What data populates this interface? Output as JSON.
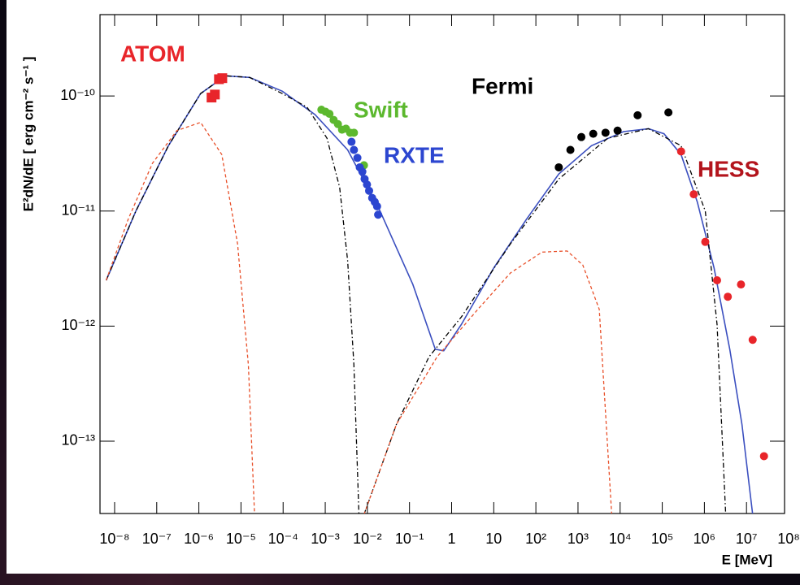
{
  "chart_data": {
    "type": "scatter",
    "xlabel": "E [MeV]",
    "ylabel": "E²dN/dE [ erg cm⁻² s⁻¹ ]",
    "log_x": true,
    "log_y": true,
    "xlim": [
      4.5e-09,
      80000000.0
    ],
    "ylim": [
      2.35e-14,
      5.1e-10
    ],
    "xticks": [
      {
        "value": 1e-08,
        "label": "10⁻⁸"
      },
      {
        "value": 1e-07,
        "label": "10⁻⁷"
      },
      {
        "value": 1e-06,
        "label": "10⁻⁶"
      },
      {
        "value": 1e-05,
        "label": "10⁻⁵"
      },
      {
        "value": 0.0001,
        "label": "10⁻⁴"
      },
      {
        "value": 0.001,
        "label": "10⁻³"
      },
      {
        "value": 0.01,
        "label": "10⁻²"
      },
      {
        "value": 0.1,
        "label": "10⁻¹"
      },
      1,
      10,
      {
        "value": 100,
        "label": "10²"
      },
      {
        "value": 1000,
        "label": "10³"
      },
      {
        "value": 10000,
        "label": "10⁴"
      },
      {
        "value": 100000,
        "label": "10⁵"
      },
      {
        "value": 1000000,
        "label": "10⁶"
      },
      {
        "value": 10000000,
        "label": "10⁷"
      },
      {
        "value": 100000000,
        "label": "10⁸"
      }
    ],
    "yticks": [
      {
        "value": 1e-13,
        "label": "10⁻¹³"
      },
      {
        "value": 1e-12,
        "label": "10⁻¹²"
      },
      {
        "value": 1e-11,
        "label": "10⁻¹¹"
      },
      {
        "value": 1e-10,
        "label": "10⁻¹⁰"
      }
    ],
    "series": [
      {
        "name": "ATOM",
        "color": "#e8252a",
        "marker": "square",
        "x": [
          2e-06,
          2.4e-06,
          3e-06,
          3.6e-06
        ],
        "values": [
          9.7e-11,
          1.03e-10,
          1.4e-10,
          1.43e-10
        ]
      },
      {
        "name": "Swift",
        "color": "#5cb82e",
        "marker": "circle",
        "x": [
          0.00081,
          0.00102,
          0.00126,
          0.00158,
          0.002,
          0.0025,
          0.0031,
          0.0039,
          0.0048,
          0.0083
        ],
        "values": [
          7.6e-11,
          7.3e-11,
          7e-11,
          6.2e-11,
          5.7e-11,
          5.1e-11,
          5.2e-11,
          4.8e-11,
          4.8e-11,
          2.5e-11
        ]
      },
      {
        "name": "RXTE",
        "color": "#2c46d0",
        "marker": "circle",
        "x": [
          0.0042,
          0.0048,
          0.0058,
          0.0066,
          0.0076,
          0.0086,
          0.0098,
          0.011,
          0.013,
          0.015,
          0.017,
          0.018
        ],
        "values": [
          4e-11,
          3.4e-11,
          2.9e-11,
          2.4e-11,
          2.2e-11,
          1.9e-11,
          1.7e-11,
          1.5e-11,
          1.3e-11,
          1.2e-11,
          1.1e-11,
          9.3e-12
        ]
      },
      {
        "name": "Fermi",
        "color": "#000000",
        "marker": "circle",
        "x": [
          350,
          660,
          1200,
          2300,
          4500,
          8700,
          26000,
          140000
        ],
        "values": [
          2.4e-11,
          3.4e-11,
          4.4e-11,
          4.7e-11,
          4.8e-11,
          5e-11,
          6.8e-11,
          7.2e-11
        ]
      },
      {
        "name": "HESS",
        "color": "#b3141c",
        "marker_color": "#e8252a",
        "marker": "circle",
        "x": [
          280000,
          560000,
          1050000,
          2000000,
          3600000,
          7400000,
          14000000,
          26000000
        ],
        "values": [
          3.3e-11,
          1.4e-11,
          5.4e-12,
          2.5e-12,
          1.8e-12,
          2.3e-12,
          7.6e-13,
          7.4e-14
        ]
      }
    ],
    "lines": [
      {
        "color": "#3b4fbf",
        "style": "solid",
        "x": [
          6.3e-09,
          3.2e-08,
          1.9e-07,
          1.1e-06,
          4.3e-06,
          1.6e-05,
          9.6e-05,
          0.00057,
          0.0034,
          0.02,
          0.12,
          0.41,
          0.65,
          1.7,
          10,
          60,
          350,
          2100,
          12000,
          47000,
          110000,
          280000,
          680000,
          1700000,
          4000000,
          7800000,
          14000000
        ],
        "values": [
          2.5e-12,
          1e-11,
          3.7e-11,
          1.05e-10,
          1.5e-10,
          1.45e-10,
          1.1e-10,
          6.9e-11,
          3.4e-11,
          1e-11,
          2.3e-12,
          6.3e-13,
          6.1e-13,
          1.03e-12,
          3.2e-12,
          8.5e-12,
          2.1e-11,
          3.7e-11,
          4.9e-11,
          5.2e-11,
          4.7e-11,
          3.1e-11,
          1.2e-11,
          3.2e-12,
          6.3e-13,
          1.4e-13,
          2.3e-14
        ]
      },
      {
        "color": "#000000",
        "style": "dashdot",
        "x": [
          6.3e-09,
          3.2e-08,
          1.9e-07,
          1.1e-06,
          4.3e-06,
          1.6e-05,
          9.6e-05,
          0.00037,
          0.0011,
          0.0022,
          0.0034,
          0.0048,
          0.0063,
          null,
          0.0083,
          0.049,
          0.29,
          1.7,
          25,
          350,
          5100,
          47000,
          280000,
          1050000,
          2000000,
          3200000
        ],
        "values": [
          2.5e-12,
          1e-11,
          3.7e-11,
          1.05e-10,
          1.5e-10,
          1.45e-10,
          1.05e-10,
          8e-11,
          4.3e-11,
          1.6e-11,
          3.7e-12,
          4.6e-13,
          2.3e-14,
          null,
          2.3e-14,
          1.4e-13,
          5.4e-13,
          1.2e-12,
          5.2e-12,
          1.9e-11,
          4.3e-11,
          5.2e-11,
          3.7e-11,
          1e-11,
          1.03e-12,
          2.3e-14
        ]
      },
      {
        "color": "#e8502a",
        "style": "dashed",
        "x": [
          6.3e-09,
          2.1e-08,
          7.9e-08,
          3e-07,
          1.1e-06,
          3.5e-06,
          8.3e-06,
          1.5e-05,
          2.1e-05,
          null,
          0.0083,
          0.049,
          0.45,
          4.2,
          25,
          140,
          550,
          1300,
          3200,
          6300
        ],
        "values": [
          2.5e-12,
          8.5e-12,
          2.6e-11,
          5e-11,
          5.9e-11,
          3.1e-11,
          5.2e-12,
          4.6e-13,
          2.3e-14,
          null,
          2.3e-14,
          1.4e-13,
          5.4e-13,
          1.4e-12,
          2.9e-12,
          4.4e-12,
          4.5e-12,
          3.4e-12,
          1.4e-12,
          2.3e-14
        ]
      }
    ]
  }
}
